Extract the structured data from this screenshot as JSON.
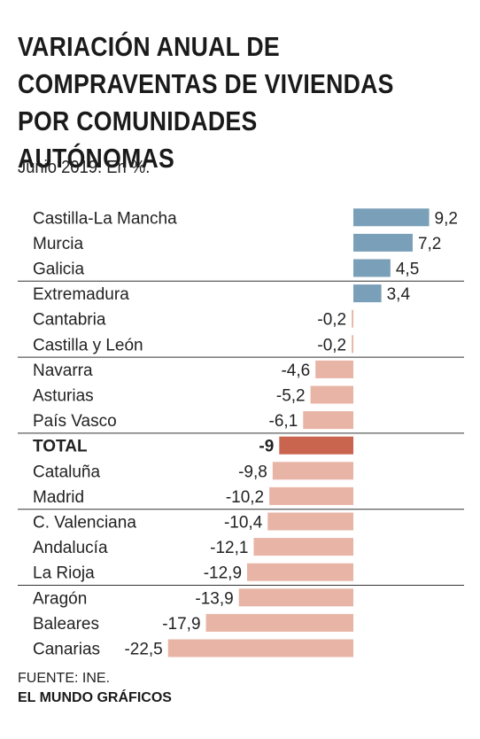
{
  "title": "VARIACIÓN ANUAL DE COMPRAVENTAS DE VIVIENDAS POR COMUNIDADES AUTÓNOMAS",
  "subtitle": "Junio 2019. En %.",
  "source": "FUENTE: INE.",
  "credit": "EL MUNDO GRÁFICOS",
  "colors": {
    "positive": "#7a9fb8",
    "negative": "#e8b4a6",
    "total": "#c9644f",
    "separator": "#333333",
    "text": "#222222"
  },
  "chart_data": {
    "type": "bar",
    "orientation": "horizontal",
    "categories": [
      "Castilla-La Mancha",
      "Murcia",
      "Galicia",
      "Extremadura",
      "Cantabria",
      "Castilla y León",
      "Navarra",
      "Asturias",
      "País Vasco",
      "TOTAL",
      "Cataluña",
      "Madrid",
      "C. Valenciana",
      "Andalucía",
      "La Rioja",
      "Aragón",
      "Baleares",
      "Canarias"
    ],
    "values": [
      9.2,
      7.2,
      4.5,
      3.4,
      -0.2,
      -0.2,
      -4.6,
      -5.2,
      -6.1,
      -9,
      -9.8,
      -10.2,
      -10.4,
      -12.1,
      -12.9,
      -13.9,
      -17.9,
      -22.5
    ],
    "value_labels": [
      "9,2",
      "7,2",
      "4,5",
      "3,4",
      "-0,2",
      "-0,2",
      "-4,6",
      "-5,2",
      "-6,1",
      "-9",
      "-9,8",
      "-10,2",
      "-10,4",
      "-12,1",
      "-12,9",
      "-13,9",
      "-17,9",
      "-22,5"
    ],
    "highlight": "TOTAL",
    "group_separators_after": [
      "Galicia",
      "Castilla y León",
      "País Vasco",
      "Madrid",
      "La Rioja"
    ],
    "xlim": [
      -22.5,
      9.2
    ],
    "grid": false,
    "legend": false
  }
}
